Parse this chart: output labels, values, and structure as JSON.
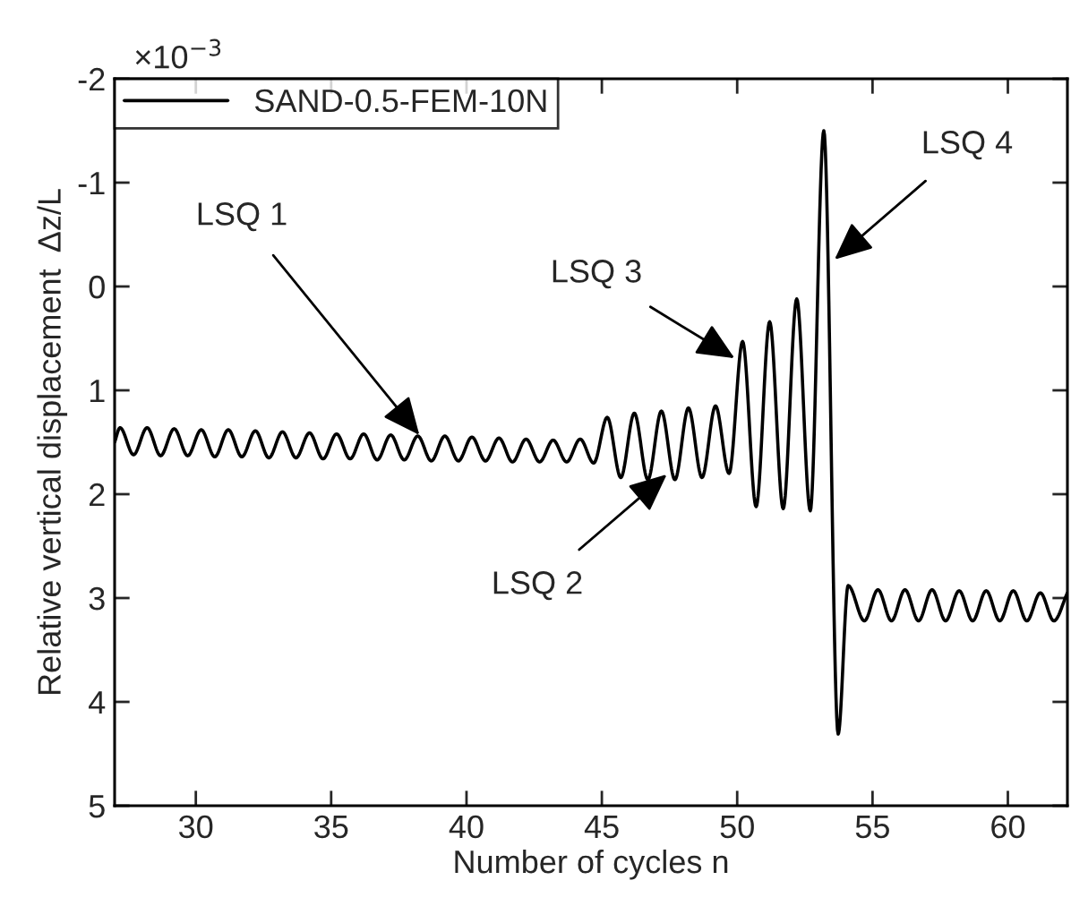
{
  "chart_data": {
    "type": "line",
    "xlabel": "Number of cycles n",
    "ylabel": "Relative vertical displacement  Δz/L",
    "x": [
      27.0,
      27.2,
      27.7,
      28.2,
      28.7,
      29.2,
      29.7,
      30.2,
      30.7,
      31.2,
      31.7,
      32.2,
      32.7,
      33.2,
      33.7,
      34.2,
      34.7,
      35.2,
      35.7,
      36.2,
      36.7,
      37.2,
      37.7,
      38.2,
      38.7,
      39.2,
      39.7,
      40.2,
      40.7,
      41.2,
      41.7,
      42.2,
      42.7,
      43.2,
      43.7,
      44.2,
      44.7,
      45.2,
      45.7,
      46.2,
      46.7,
      47.2,
      47.7,
      48.2,
      48.7,
      49.2,
      49.7,
      50.2,
      50.7,
      51.2,
      51.7,
      52.2,
      52.7,
      53.2,
      53.73,
      54.1,
      54.7,
      55.2,
      55.7,
      56.2,
      56.7,
      57.2,
      57.7,
      58.2,
      58.7,
      59.2,
      59.7,
      60.2,
      60.7,
      61.2,
      61.7,
      62.2
    ],
    "series": [
      {
        "name": "SAND-0.5-FEM-10N",
        "color": "#000000",
        "values": [
          1.5,
          1.36,
          1.62,
          1.36,
          1.63,
          1.37,
          1.63,
          1.38,
          1.64,
          1.38,
          1.64,
          1.39,
          1.65,
          1.4,
          1.65,
          1.41,
          1.66,
          1.42,
          1.66,
          1.42,
          1.67,
          1.43,
          1.67,
          1.44,
          1.68,
          1.44,
          1.68,
          1.45,
          1.68,
          1.46,
          1.69,
          1.47,
          1.69,
          1.48,
          1.69,
          1.47,
          1.7,
          1.26,
          1.84,
          1.22,
          1.86,
          1.2,
          1.86,
          1.17,
          1.84,
          1.15,
          1.8,
          0.53,
          2.12,
          0.34,
          2.14,
          0.12,
          2.16,
          -1.5,
          4.31,
          2.88,
          3.22,
          2.92,
          3.22,
          2.92,
          3.22,
          2.92,
          3.22,
          2.93,
          3.22,
          2.93,
          3.22,
          2.93,
          3.22,
          2.95,
          3.22,
          2.95
        ]
      }
    ],
    "xlim": [
      27,
      62.2
    ],
    "xticks": [
      30,
      35,
      40,
      45,
      50,
      55,
      60
    ],
    "ylim": [
      5,
      -2
    ],
    "yticks": [
      -2,
      -1,
      0,
      1,
      2,
      3,
      4,
      5
    ],
    "annotations": [
      "×10$^{−3}$",
      {
        "text": "LSQ 1",
        "x": 38.26,
        "y": 1.43
      },
      {
        "text": "LSQ 2",
        "x": 47.4,
        "y": 1.81
      },
      {
        "text": "LSQ 3",
        "x": 49.9,
        "y": 0.69
      },
      {
        "text": "LSQ 4",
        "x": 53.6,
        "y": -0.26
      }
    ],
    "legend": "top left",
    "grid": false,
    "marker": "none",
    "line_style": "solid"
  }
}
